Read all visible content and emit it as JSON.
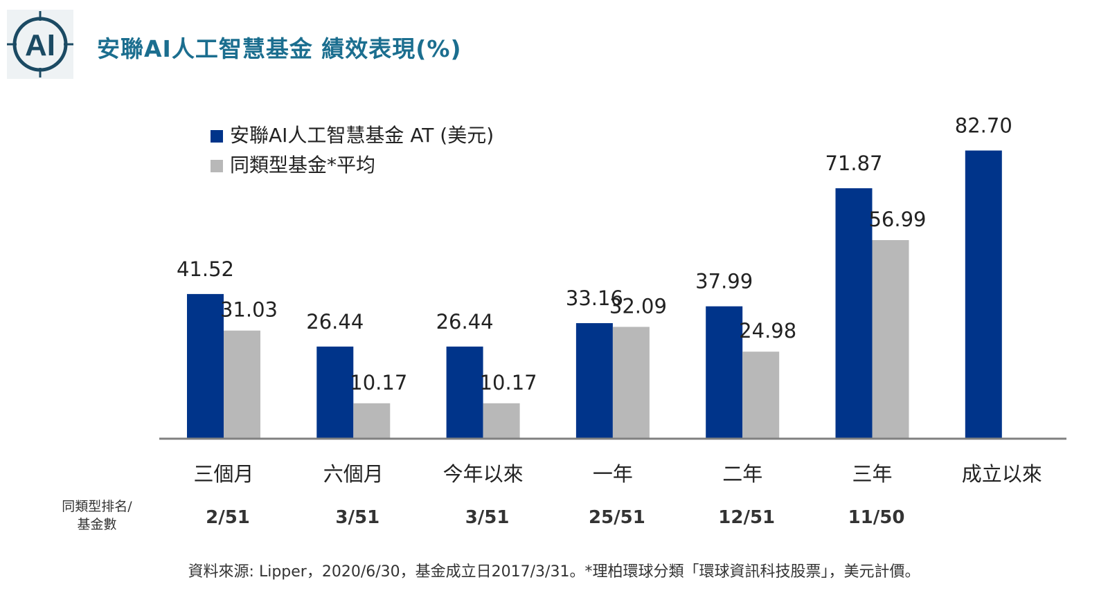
{
  "header": {
    "logo_text": "AI",
    "title": "安聯AI人工智慧基金  績效表現(%)"
  },
  "colors": {
    "primary_series": "#00348a",
    "secondary_series": "#b8b8b8",
    "title": "#1b6e8f",
    "axis": "#808080"
  },
  "chart_data": {
    "type": "bar",
    "categories": [
      "三個月",
      "六個月",
      "今年以來",
      "一年",
      "二年",
      "三年",
      "成立以來"
    ],
    "series": [
      {
        "name": "安聯AI人工智慧基金 AT (美元)",
        "values": [
          41.52,
          26.44,
          26.44,
          33.16,
          37.99,
          71.87,
          82.7
        ],
        "labels": [
          "41.52",
          "26.44",
          "26.44",
          "33.16",
          "37.99",
          "71.87",
          "82.70"
        ]
      },
      {
        "name": "同類型基金*平均",
        "values": [
          31.03,
          10.17,
          10.17,
          32.09,
          24.98,
          56.99,
          null
        ],
        "labels": [
          "31.03",
          "10.17",
          "10.17",
          "32.09",
          "24.98",
          "56.99",
          null
        ]
      }
    ],
    "ylim": [
      0,
      90
    ],
    "grid": false,
    "legend_position": "top-left"
  },
  "ranking": {
    "header_line1": "同類型排名/",
    "header_line2": "基金數",
    "values": [
      "2/51",
      "3/51",
      "3/51",
      "25/51",
      "12/51",
      "11/50",
      ""
    ]
  },
  "footer": {
    "source": "資料來源: Lipper，2020/6/30，基金成立日2017/3/31。*理柏環球分類「環球資訊科技股票」，美元計價。"
  }
}
